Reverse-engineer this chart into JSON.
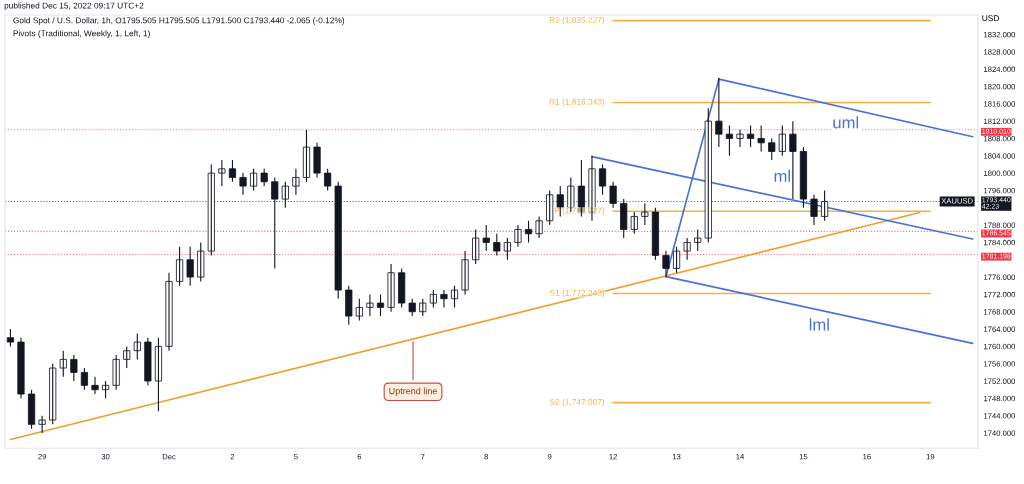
{
  "chart_data": {
    "type": "candlestick",
    "title": "Gold Spot / U.S. Dollar, 1h, O1795.505 H1795.505 L1791.500 C1793.440 -2.065 (-0.12%)",
    "subtitle": "Pivots (Traditional, Weekly, 1, Left, 1)",
    "ylabel": "USD",
    "categories": [
      null,
      null,
      null,
      "29",
      null,
      null,
      null,
      null,
      null,
      "30",
      null,
      null,
      null,
      null,
      null,
      "Dec",
      null,
      null,
      null,
      null,
      null,
      "2",
      null,
      null,
      null,
      null,
      null,
      "5",
      null,
      null,
      null,
      null,
      null,
      "6",
      null,
      null,
      null,
      null,
      null,
      "7",
      null,
      null,
      null,
      null,
      null,
      "8",
      null,
      null,
      null,
      null,
      null,
      "9",
      null,
      null,
      null,
      null,
      null,
      "12",
      null,
      null,
      null,
      null,
      null,
      "13",
      null,
      null,
      null,
      null,
      null,
      "14",
      null,
      null,
      null,
      null,
      null,
      "15",
      null,
      null,
      null,
      null,
      null,
      "16",
      null,
      null,
      null,
      null,
      null,
      "19",
      null,
      null,
      null,
      null
    ],
    "ohlc": [
      [
        1762,
        1764,
        1760,
        1761
      ],
      [
        1761,
        1762,
        1748,
        1749
      ],
      [
        1749,
        1750,
        1741,
        1742
      ],
      [
        1742,
        1744,
        1740,
        1743
      ],
      [
        1743,
        1756,
        1742,
        1755
      ],
      [
        1755,
        1759,
        1753,
        1757
      ],
      [
        1757,
        1758,
        1752,
        1754
      ],
      [
        1754,
        1755,
        1750,
        1751
      ],
      [
        1751,
        1753,
        1749,
        1750
      ],
      [
        1750,
        1752,
        1748,
        1751
      ],
      [
        1751,
        1758,
        1750,
        1757
      ],
      [
        1757,
        1760,
        1755,
        1759
      ],
      [
        1759,
        1763,
        1757,
        1761
      ],
      [
        1761,
        1762,
        1751,
        1752
      ],
      [
        1752,
        1762,
        1745,
        1760
      ],
      [
        1760,
        1777,
        1759,
        1775
      ],
      [
        1775,
        1783,
        1774,
        1780
      ],
      [
        1780,
        1783,
        1774,
        1776
      ],
      [
        1776,
        1784,
        1775,
        1782
      ],
      [
        1782,
        1802,
        1781,
        1800
      ],
      [
        1800,
        1803,
        1797,
        1801
      ],
      [
        1801,
        1803,
        1798,
        1799
      ],
      [
        1799,
        1800,
        1795,
        1797
      ],
      [
        1797,
        1801,
        1796,
        1800
      ],
      [
        1800,
        1801,
        1797,
        1798
      ],
      [
        1798,
        1799,
        1778,
        1794
      ],
      [
        1794,
        1798,
        1792,
        1797
      ],
      [
        1797,
        1801,
        1795,
        1799
      ],
      [
        1799,
        1810,
        1798,
        1806
      ],
      [
        1806,
        1807,
        1799,
        1800
      ],
      [
        1800,
        1801,
        1796,
        1797
      ],
      [
        1797,
        1798,
        1771,
        1773
      ],
      [
        1773,
        1774,
        1765,
        1767
      ],
      [
        1767,
        1771,
        1766,
        1769
      ],
      [
        1769,
        1772,
        1767,
        1770
      ],
      [
        1770,
        1772,
        1767,
        1769
      ],
      [
        1769,
        1779,
        1768,
        1777
      ],
      [
        1777,
        1778,
        1769,
        1770
      ],
      [
        1770,
        1771,
        1767,
        1768
      ],
      [
        1768,
        1771,
        1767,
        1770
      ],
      [
        1770,
        1773,
        1769,
        1772
      ],
      [
        1772,
        1773,
        1769,
        1771
      ],
      [
        1771,
        1774,
        1769,
        1773
      ],
      [
        1773,
        1782,
        1772,
        1780
      ],
      [
        1780,
        1787,
        1779,
        1785
      ],
      [
        1785,
        1788,
        1782,
        1784
      ],
      [
        1784,
        1786,
        1781,
        1782
      ],
      [
        1782,
        1785,
        1780,
        1784
      ],
      [
        1784,
        1788,
        1783,
        1787
      ],
      [
        1787,
        1789,
        1784,
        1786
      ],
      [
        1786,
        1790,
        1785,
        1789
      ],
      [
        1789,
        1796,
        1788,
        1795
      ],
      [
        1795,
        1797,
        1790,
        1792
      ],
      [
        1792,
        1799,
        1791,
        1797
      ],
      [
        1797,
        1803,
        1790,
        1791
      ],
      [
        1791,
        1804,
        1789,
        1801
      ],
      [
        1801,
        1802,
        1795,
        1797
      ],
      [
        1797,
        1798,
        1792,
        1793
      ],
      [
        1793,
        1794,
        1785,
        1787
      ],
      [
        1787,
        1791,
        1786,
        1790
      ],
      [
        1790,
        1793,
        1788,
        1791
      ],
      [
        1791,
        1792,
        1780,
        1781
      ],
      [
        1781,
        1782,
        1776,
        1778
      ],
      [
        1778,
        1783,
        1777,
        1782
      ],
      [
        1782,
        1785,
        1780,
        1784
      ],
      [
        1784,
        1787,
        1782,
        1785
      ],
      [
        1785,
        1815,
        1784,
        1812
      ],
      [
        1812,
        1822,
        1806,
        1809
      ],
      [
        1809,
        1811,
        1804,
        1808
      ],
      [
        1808,
        1810,
        1806,
        1809
      ],
      [
        1809,
        1811,
        1806,
        1808
      ],
      [
        1808,
        1811,
        1805,
        1807
      ],
      [
        1807,
        1808,
        1803,
        1805
      ],
      [
        1805,
        1811,
        1804,
        1809
      ],
      [
        1809,
        1812,
        1794,
        1805
      ],
      [
        1805,
        1806,
        1792,
        1794
      ],
      [
        1794,
        1795,
        1788,
        1790
      ],
      [
        1790,
        1796,
        1789,
        1793.44
      ],
      null,
      null,
      null,
      null,
      null,
      null,
      null,
      null,
      null,
      null,
      null,
      null,
      null,
      null
    ],
    "series": [
      {
        "type": "line",
        "name": "R2 (1,835.227)",
        "color": "#f5b041",
        "values": [
          null,
          null,
          null,
          null,
          null,
          null,
          null,
          null,
          null,
          null,
          null,
          null,
          null,
          null,
          null,
          null,
          null,
          null,
          null,
          null,
          null,
          null,
          null,
          null,
          null,
          null,
          null,
          null,
          null,
          null,
          null,
          null,
          null,
          null,
          null,
          null,
          null,
          null,
          null,
          null,
          null,
          null,
          null,
          null,
          null,
          null,
          null,
          null,
          null,
          null,
          null,
          null,
          null,
          null,
          null,
          null,
          null,
          1835.2,
          null,
          null,
          null,
          null,
          null,
          null,
          null,
          null,
          null,
          null,
          null,
          null,
          null,
          null,
          null,
          null,
          null,
          null,
          null,
          null,
          null,
          null,
          null,
          null,
          null,
          null,
          null,
          null,
          null,
          1835.2,
          null,
          null,
          null,
          null
        ]
      },
      {
        "type": "line",
        "name": "R1 (1,816.343)",
        "color": "#f5b041",
        "values": [
          null,
          null,
          null,
          null,
          null,
          null,
          null,
          null,
          null,
          null,
          null,
          null,
          null,
          null,
          null,
          null,
          null,
          null,
          null,
          null,
          null,
          null,
          null,
          null,
          null,
          null,
          null,
          null,
          null,
          null,
          null,
          null,
          null,
          null,
          null,
          null,
          null,
          null,
          null,
          null,
          null,
          null,
          null,
          null,
          null,
          null,
          null,
          null,
          null,
          null,
          null,
          null,
          null,
          null,
          null,
          null,
          null,
          1816.3,
          null,
          null,
          null,
          null,
          null,
          null,
          null,
          null,
          null,
          null,
          null,
          null,
          null,
          null,
          null,
          null,
          null,
          null,
          null,
          null,
          null,
          null,
          null,
          null,
          null,
          null,
          null,
          null,
          null,
          1816.3,
          null,
          null,
          null,
          null
        ]
      },
      {
        "type": "line",
        "name": "P (1,791.227)",
        "color": "#f5b041",
        "values": [
          null,
          null,
          null,
          null,
          null,
          null,
          null,
          null,
          null,
          null,
          null,
          null,
          null,
          null,
          null,
          null,
          null,
          null,
          null,
          null,
          null,
          null,
          null,
          null,
          null,
          null,
          null,
          null,
          null,
          null,
          null,
          null,
          null,
          null,
          null,
          null,
          null,
          null,
          null,
          null,
          null,
          null,
          null,
          null,
          null,
          null,
          null,
          null,
          null,
          null,
          null,
          null,
          null,
          null,
          null,
          null,
          null,
          1791.2,
          null,
          null,
          null,
          null,
          null,
          null,
          null,
          null,
          null,
          null,
          null,
          null,
          null,
          null,
          null,
          null,
          null,
          null,
          null,
          null,
          null,
          null,
          null,
          null,
          null,
          null,
          null,
          null,
          null,
          1791.2,
          null,
          null,
          null,
          null
        ]
      },
      {
        "type": "line",
        "name": "S1 (1,772.243)",
        "color": "#f5b041",
        "values": [
          null,
          null,
          null,
          null,
          null,
          null,
          null,
          null,
          null,
          null,
          null,
          null,
          null,
          null,
          null,
          null,
          null,
          null,
          null,
          null,
          null,
          null,
          null,
          null,
          null,
          null,
          null,
          null,
          null,
          null,
          null,
          null,
          null,
          null,
          null,
          null,
          null,
          null,
          null,
          null,
          null,
          null,
          null,
          null,
          null,
          null,
          null,
          null,
          null,
          null,
          null,
          null,
          null,
          null,
          null,
          null,
          null,
          1772.2,
          null,
          null,
          null,
          null,
          null,
          null,
          null,
          null,
          null,
          null,
          null,
          null,
          null,
          null,
          null,
          null,
          null,
          null,
          null,
          null,
          null,
          null,
          null,
          null,
          null,
          null,
          null,
          null,
          null,
          1772.2,
          null,
          null,
          null,
          null
        ]
      },
      {
        "type": "line",
        "name": "S2 (1,747.007)",
        "color": "#f5b041",
        "values": [
          null,
          null,
          null,
          null,
          null,
          null,
          null,
          null,
          null,
          null,
          null,
          null,
          null,
          null,
          null,
          null,
          null,
          null,
          null,
          null,
          null,
          null,
          null,
          null,
          null,
          null,
          null,
          null,
          null,
          null,
          null,
          null,
          null,
          null,
          null,
          null,
          null,
          null,
          null,
          null,
          null,
          null,
          null,
          null,
          null,
          null,
          null,
          null,
          null,
          null,
          null,
          null,
          null,
          null,
          null,
          null,
          null,
          1747.0,
          null,
          null,
          null,
          null,
          null,
          null,
          null,
          null,
          null,
          null,
          null,
          null,
          null,
          null,
          null,
          null,
          null,
          null,
          null,
          null,
          null,
          null,
          null,
          null,
          null,
          null,
          null,
          null,
          null,
          1747.0,
          null,
          null,
          null,
          null
        ]
      },
      {
        "type": "line",
        "color": "#f0a030",
        "values": [
          1738.5,
          null,
          null,
          null,
          null,
          null,
          null,
          null,
          null,
          null,
          null,
          null,
          null,
          null,
          null,
          null,
          null,
          null,
          null,
          null,
          null,
          null,
          null,
          null,
          null,
          null,
          null,
          null,
          null,
          null,
          null,
          null,
          null,
          null,
          null,
          null,
          null,
          null,
          null,
          null,
          null,
          null,
          null,
          null,
          null,
          null,
          null,
          null,
          null,
          null,
          null,
          null,
          null,
          null,
          null,
          null,
          null,
          null,
          null,
          null,
          null,
          null,
          null,
          null,
          null,
          null,
          null,
          null,
          null,
          null,
          null,
          null,
          null,
          null,
          null,
          null,
          null,
          null,
          null,
          null,
          null,
          null,
          null,
          null,
          null,
          null,
          1790.9,
          null,
          null,
          null,
          null,
          null
        ]
      },
      {
        "type": "line",
        "color": "#4a72d6",
        "values": [
          null,
          null,
          null,
          null,
          null,
          null,
          null,
          null,
          null,
          null,
          null,
          null,
          null,
          null,
          null,
          null,
          null,
          null,
          null,
          null,
          null,
          null,
          null,
          null,
          null,
          null,
          null,
          null,
          null,
          null,
          null,
          null,
          null,
          null,
          null,
          null,
          null,
          null,
          null,
          null,
          null,
          null,
          null,
          null,
          null,
          null,
          null,
          null,
          null,
          null,
          null,
          null,
          null,
          null,
          null,
          null,
          null,
          null,
          null,
          null,
          null,
          null,
          1776.1,
          null,
          null,
          null,
          null,
          1821.7,
          null,
          null,
          null,
          null,
          null,
          null,
          null,
          null,
          null,
          null,
          null,
          null,
          null,
          null,
          null,
          null,
          null,
          null,
          null,
          null,
          null,
          null,
          null,
          null
        ]
      },
      {
        "type": "line",
        "name": "uml",
        "color": "#4a72d6",
        "values": [
          null,
          null,
          null,
          null,
          null,
          null,
          null,
          null,
          null,
          null,
          null,
          null,
          null,
          null,
          null,
          null,
          null,
          null,
          null,
          null,
          null,
          null,
          null,
          null,
          null,
          null,
          null,
          null,
          null,
          null,
          null,
          null,
          null,
          null,
          null,
          null,
          null,
          null,
          null,
          null,
          null,
          null,
          null,
          null,
          null,
          null,
          null,
          null,
          null,
          null,
          null,
          null,
          null,
          null,
          null,
          null,
          null,
          null,
          null,
          null,
          null,
          null,
          null,
          null,
          null,
          null,
          null,
          1821.7,
          null,
          null,
          null,
          null,
          null,
          null,
          null,
          null,
          null,
          null,
          null,
          null,
          null,
          null,
          null,
          null,
          null,
          null,
          null,
          null,
          null,
          null,
          null,
          1808.4
        ]
      },
      {
        "type": "line",
        "name": "ml",
        "color": "#4a72d6",
        "values": [
          null,
          null,
          null,
          null,
          null,
          null,
          null,
          null,
          null,
          null,
          null,
          null,
          null,
          null,
          null,
          null,
          null,
          null,
          null,
          null,
          null,
          null,
          null,
          null,
          null,
          null,
          null,
          null,
          null,
          null,
          null,
          null,
          null,
          null,
          null,
          null,
          null,
          null,
          null,
          null,
          null,
          null,
          null,
          null,
          null,
          null,
          null,
          null,
          null,
          null,
          null,
          null,
          null,
          null,
          null,
          1803.8,
          null,
          null,
          null,
          null,
          null,
          null,
          null,
          null,
          null,
          null,
          null,
          null,
          null,
          null,
          null,
          null,
          null,
          null,
          null,
          null,
          null,
          null,
          null,
          null,
          null,
          null,
          null,
          null,
          null,
          null,
          null,
          null,
          null,
          null,
          null,
          1784.8
        ]
      },
      {
        "type": "line",
        "name": "lml",
        "color": "#4a72d6",
        "values": [
          null,
          null,
          null,
          null,
          null,
          null,
          null,
          null,
          null,
          null,
          null,
          null,
          null,
          null,
          null,
          null,
          null,
          null,
          null,
          null,
          null,
          null,
          null,
          null,
          null,
          null,
          null,
          null,
          null,
          null,
          null,
          null,
          null,
          null,
          null,
          null,
          null,
          null,
          null,
          null,
          null,
          null,
          null,
          null,
          null,
          null,
          null,
          null,
          null,
          null,
          null,
          null,
          null,
          null,
          null,
          null,
          null,
          null,
          null,
          null,
          null,
          null,
          1776.1,
          null,
          null,
          null,
          null,
          null,
          null,
          null,
          null,
          null,
          null,
          null,
          null,
          null,
          null,
          null,
          null,
          null,
          null,
          null,
          null,
          null,
          null,
          null,
          null,
          null,
          null,
          null,
          null,
          1760.7
        ]
      }
    ],
    "ylim": [
      1736.5,
      1836.5
    ],
    "yticks": [
      {
        "value": 1740,
        "label": "1740.000"
      },
      {
        "value": 1744,
        "label": "1744.000"
      },
      {
        "value": 1748,
        "label": "1748.000"
      },
      {
        "value": 1752,
        "label": "1752.000"
      },
      {
        "value": 1756,
        "label": "1756.000"
      },
      {
        "value": 1760,
        "label": "1760.000"
      },
      {
        "value": 1764,
        "label": "1764.000"
      },
      {
        "value": 1768,
        "label": "1768.000"
      },
      {
        "value": 1772,
        "label": "1772.000"
      },
      {
        "value": 1776,
        "label": "1776.000"
      },
      {
        "value": 1784,
        "label": "1784.000"
      },
      {
        "value": 1788,
        "label": "1788.000"
      },
      {
        "value": 1796,
        "label": "1796.000"
      },
      {
        "value": 1800,
        "label": "1800.000"
      },
      {
        "value": 1804,
        "label": "1804.000"
      },
      {
        "value": 1808,
        "label": "1808.000"
      },
      {
        "value": 1812,
        "label": "1812.000"
      },
      {
        "value": 1816,
        "label": "1816.000"
      },
      {
        "value": 1820,
        "label": "1820.000"
      },
      {
        "value": 1824,
        "label": "1824.000"
      },
      {
        "value": 1828,
        "label": "1828.000"
      },
      {
        "value": 1832,
        "label": "1832.000"
      }
    ],
    "ref_lines": [
      {
        "axis": "y",
        "value": 1810.01,
        "label": "1810.010",
        "color": "#f23645",
        "line_style": "dotted"
      },
      {
        "axis": "y",
        "value": 1786.545,
        "label": "1786.545",
        "color": "#f23645",
        "line_style": "dotted"
      },
      {
        "axis": "y",
        "value": 1781.198,
        "label": "1781.198",
        "color": "#f23645",
        "line_style": "dotted"
      },
      {
        "axis": "y",
        "value": 1793.44,
        "label": "1793.440\n42:23",
        "color": "#131722",
        "line_style": "dotted"
      }
    ],
    "annotations": [
      "published Dec 15, 2022 09:17 UTC+2",
      {
        "text": "XAUUSD",
        "y": 1793.44
      },
      {
        "text": "Uptrend line",
        "y": 1761.7
      }
    ],
    "grid": false,
    "legend": false
  }
}
